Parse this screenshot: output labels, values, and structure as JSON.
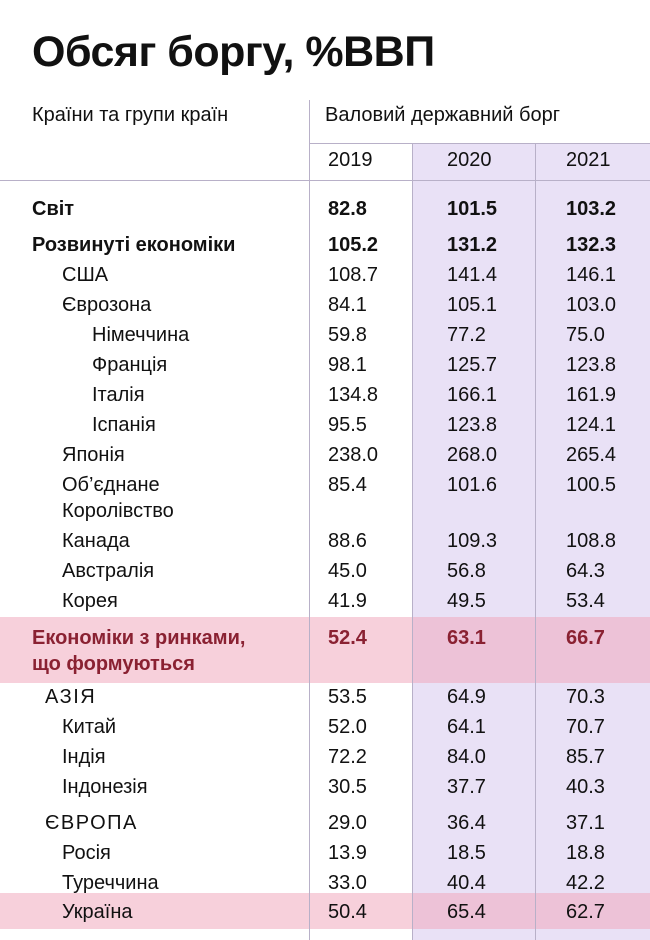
{
  "title": "Обсяг боргу, %ВВП",
  "header": {
    "countries_label": "Країни та групи країн",
    "debt_label": "Валовий державний борг"
  },
  "colors": {
    "highlight_column": "#e9e1f6",
    "highlight_row": "#f4bccb",
    "emerging_text": "#8a2132",
    "text": "#111111"
  },
  "chart_data": {
    "type": "table",
    "title": "Обсяг боргу, %ВВП",
    "columns": [
      "2019",
      "2020",
      "2021"
    ],
    "rows": [
      {
        "name": "Світ",
        "values": [
          "82.8",
          "101.5",
          "103.2"
        ]
      },
      {
        "name": "Розвинуті економіки",
        "values": [
          "105.2",
          "131.2",
          "132.3"
        ]
      },
      {
        "name": "США",
        "values": [
          "108.7",
          "141.4",
          "146.1"
        ]
      },
      {
        "name": "Єврозона",
        "values": [
          "84.1",
          "105.1",
          "103.0"
        ]
      },
      {
        "name": "Німеччина",
        "values": [
          "59.8",
          "77.2",
          "75.0"
        ]
      },
      {
        "name": "Франція",
        "values": [
          "98.1",
          "125.7",
          "123.8"
        ]
      },
      {
        "name": "Італія",
        "values": [
          "134.8",
          "166.1",
          "161.9"
        ]
      },
      {
        "name": "Іспанія",
        "values": [
          "95.5",
          "123.8",
          "124.1"
        ]
      },
      {
        "name": "Японія",
        "values": [
          "238.0",
          "268.0",
          "265.4"
        ]
      },
      {
        "name": "Об’єднане",
        "name2": "Королівство",
        "values": [
          "85.4",
          "101.6",
          "100.5"
        ]
      },
      {
        "name": "Канада",
        "values": [
          "88.6",
          "109.3",
          "108.8"
        ]
      },
      {
        "name": "Австралія",
        "values": [
          "45.0",
          "56.8",
          "64.3"
        ]
      },
      {
        "name": "Корея",
        "values": [
          "41.9",
          "49.5",
          "53.4"
        ]
      },
      {
        "name": "Економіки з ринками,",
        "name2": "що формуються",
        "values": [
          "52.4",
          "63.1",
          "66.7"
        ]
      },
      {
        "name": "АЗІЯ",
        "values": [
          "53.5",
          "64.9",
          "70.3"
        ]
      },
      {
        "name": "Китай",
        "values": [
          "52.0",
          "64.1",
          "70.7"
        ]
      },
      {
        "name": "Індія",
        "values": [
          "72.2",
          "84.0",
          "85.7"
        ]
      },
      {
        "name": "Індонезія",
        "values": [
          "30.5",
          "37.7",
          "40.3"
        ]
      },
      {
        "name": "ЄВРОПА",
        "values": [
          "29.0",
          "36.4",
          "37.1"
        ]
      },
      {
        "name": "Росія",
        "values": [
          "13.9",
          "18.5",
          "18.8"
        ]
      },
      {
        "name": "Туреччина",
        "values": [
          "33.0",
          "40.4",
          "42.2"
        ]
      },
      {
        "name": "Україна",
        "values": [
          "50.4",
          "65.4",
          "62.7"
        ]
      }
    ]
  }
}
